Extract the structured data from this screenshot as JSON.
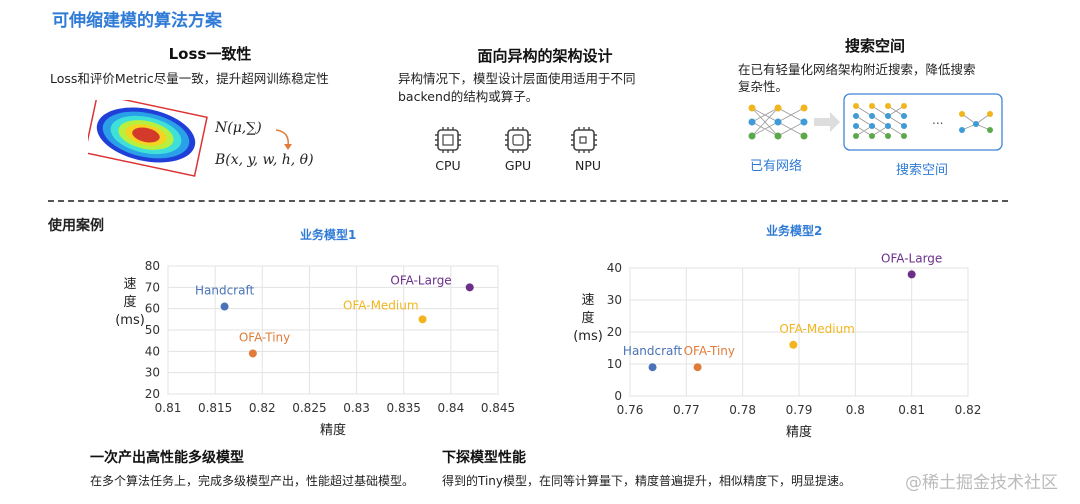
{
  "title": "可伸缩建模的算法方案",
  "sections": [
    {
      "title": "Loss一致性",
      "text": "Loss和评价Metric尽量一致，提升超网训练稳定性",
      "formula1": "N(μ,∑)",
      "formula2": "B(x, y, w, h, θ)"
    },
    {
      "title": "面向异构的架构设计",
      "text1": "异构情况下，模型设计层面使用适用于不同",
      "text2": "backend的结构或算子。",
      "chips": [
        "CPU",
        "GPU",
        "NPU"
      ]
    },
    {
      "title": "搜索空间",
      "text1": "在已有轻量化网络架构附近搜索，降低搜索",
      "text2": "复杂性。",
      "label_existing": "已有网络",
      "label_space": "搜索空间",
      "ellipsis": "..."
    }
  ],
  "usage_label": "使用案例",
  "chart_data": [
    {
      "type": "scatter",
      "title": "业务模型1",
      "xlabel": "精度",
      "ylabel": [
        "速",
        "度",
        "(ms)"
      ],
      "xlim": [
        0.81,
        0.845
      ],
      "ylim": [
        20,
        80
      ],
      "xticks": [
        "0.81",
        "0.815",
        "0.82",
        "0.825",
        "0.83",
        "0.835",
        "0.84",
        "0.845"
      ],
      "yticks": [
        "20",
        "30",
        "40",
        "50",
        "60",
        "70",
        "80"
      ],
      "grid": true,
      "points": [
        {
          "name": "Handcraft",
          "x": 0.816,
          "y": 61,
          "color": "#4a72b8",
          "label_pos": "above"
        },
        {
          "name": "OFA-Tiny",
          "x": 0.819,
          "y": 39,
          "color": "#e07b39",
          "label_pos": "above-right"
        },
        {
          "name": "OFA-Medium",
          "x": 0.837,
          "y": 55,
          "color": "#f2b51e",
          "label_pos": "above-left"
        },
        {
          "name": "OFA-Large",
          "x": 0.842,
          "y": 70,
          "color": "#6b2f8a",
          "label_pos": "left"
        }
      ]
    },
    {
      "type": "scatter",
      "title": "业务模型2",
      "xlabel": "精度",
      "ylabel": [
        "速",
        "度",
        "(ms)"
      ],
      "xlim": [
        0.76,
        0.82
      ],
      "ylim": [
        0,
        40
      ],
      "xticks": [
        "0.76",
        "0.77",
        "0.78",
        "0.79",
        "0.8",
        "0.81",
        "0.82"
      ],
      "yticks": [
        "0",
        "10",
        "20",
        "30",
        "40"
      ],
      "grid": true,
      "points": [
        {
          "name": "Handcraft",
          "x": 0.764,
          "y": 9,
          "color": "#4a72b8",
          "label_pos": "above"
        },
        {
          "name": "OFA-Tiny",
          "x": 0.772,
          "y": 9,
          "color": "#e07b39",
          "label_pos": "above-right"
        },
        {
          "name": "OFA-Medium",
          "x": 0.789,
          "y": 16,
          "color": "#f2b51e",
          "label_pos": "above-right"
        },
        {
          "name": "OFA-Large",
          "x": 0.81,
          "y": 38,
          "color": "#6b2f8a",
          "label_pos": "above"
        }
      ]
    }
  ],
  "bottom": [
    {
      "title": "一次产出高性能多级模型",
      "text": "在多个算法任务上，完成多级模型产出，性能超过基础模型。"
    },
    {
      "title": "下探模型性能",
      "text": "得到的Tiny模型，在同等计算量下，精度普遍提升，相似精度下，明显提速。"
    }
  ],
  "watermark": "@稀土掘金技术社区"
}
